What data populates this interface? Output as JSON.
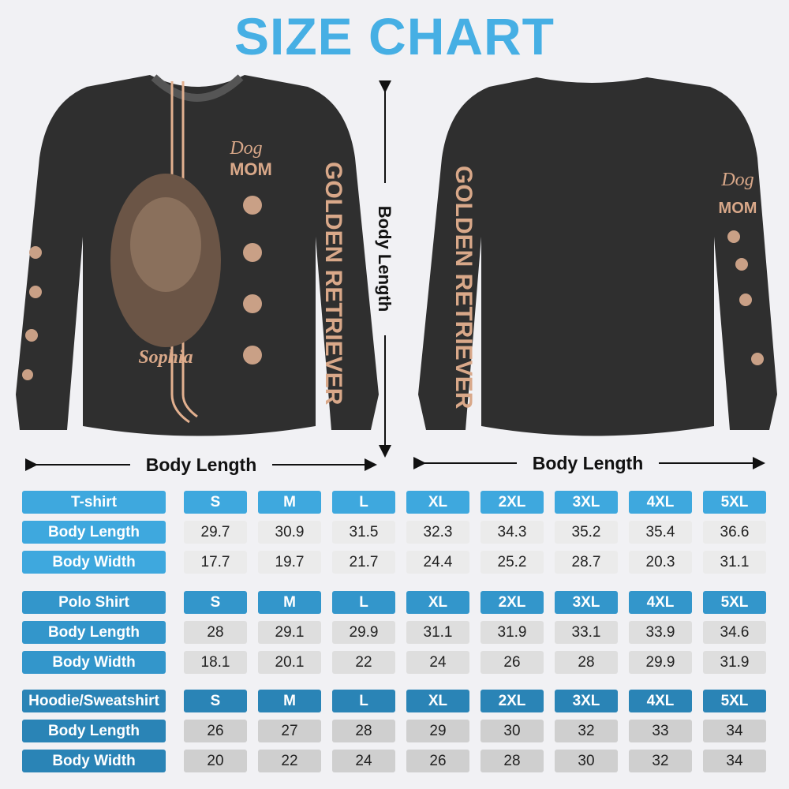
{
  "title": "SIZE CHART",
  "front": {
    "script": "Dog",
    "badge": "MOM",
    "sleeve_text": "GOLDEN RETRIEVER",
    "name": "Sophia"
  },
  "back": {
    "script": "Dog",
    "badge": "MOM",
    "sleeve_text": "GOLDEN RETRIEVER"
  },
  "dimension_labels": {
    "vertical": "Body Length",
    "front": "Body Length",
    "back": "Body Length"
  },
  "tables": [
    {
      "header": [
        "T-shirt",
        "S",
        "M",
        "L",
        "XL",
        "2XL",
        "3XL",
        "4XL",
        "5XL"
      ],
      "rows": [
        [
          "Body Length",
          29.7,
          30.9,
          31.5,
          32.3,
          34.3,
          35.2,
          35.4,
          36.6
        ],
        [
          "Body Width",
          17.7,
          19.7,
          21.7,
          24.4,
          25.2,
          28.7,
          20.3,
          31.1
        ]
      ]
    },
    {
      "header": [
        "Polo Shirt",
        "S",
        "M",
        "L",
        "XL",
        "2XL",
        "3XL",
        "4XL",
        "5XL"
      ],
      "rows": [
        [
          "Body Length",
          28,
          29.1,
          29.9,
          31.1,
          31.9,
          33.1,
          33.9,
          34.6
        ],
        [
          "Body Width",
          18.1,
          20.1,
          22,
          24,
          26,
          28,
          29.9,
          31.9
        ]
      ]
    },
    {
      "header": [
        "Hoodie/Sweatshirt",
        "S",
        "M",
        "L",
        "XL",
        "2XL",
        "3XL",
        "4XL",
        "5XL"
      ],
      "rows": [
        [
          "Body Length",
          26,
          27,
          28,
          29,
          30,
          32,
          33,
          34
        ],
        [
          "Body Width",
          20,
          22,
          24,
          26,
          28,
          30,
          32,
          34
        ]
      ]
    }
  ]
}
